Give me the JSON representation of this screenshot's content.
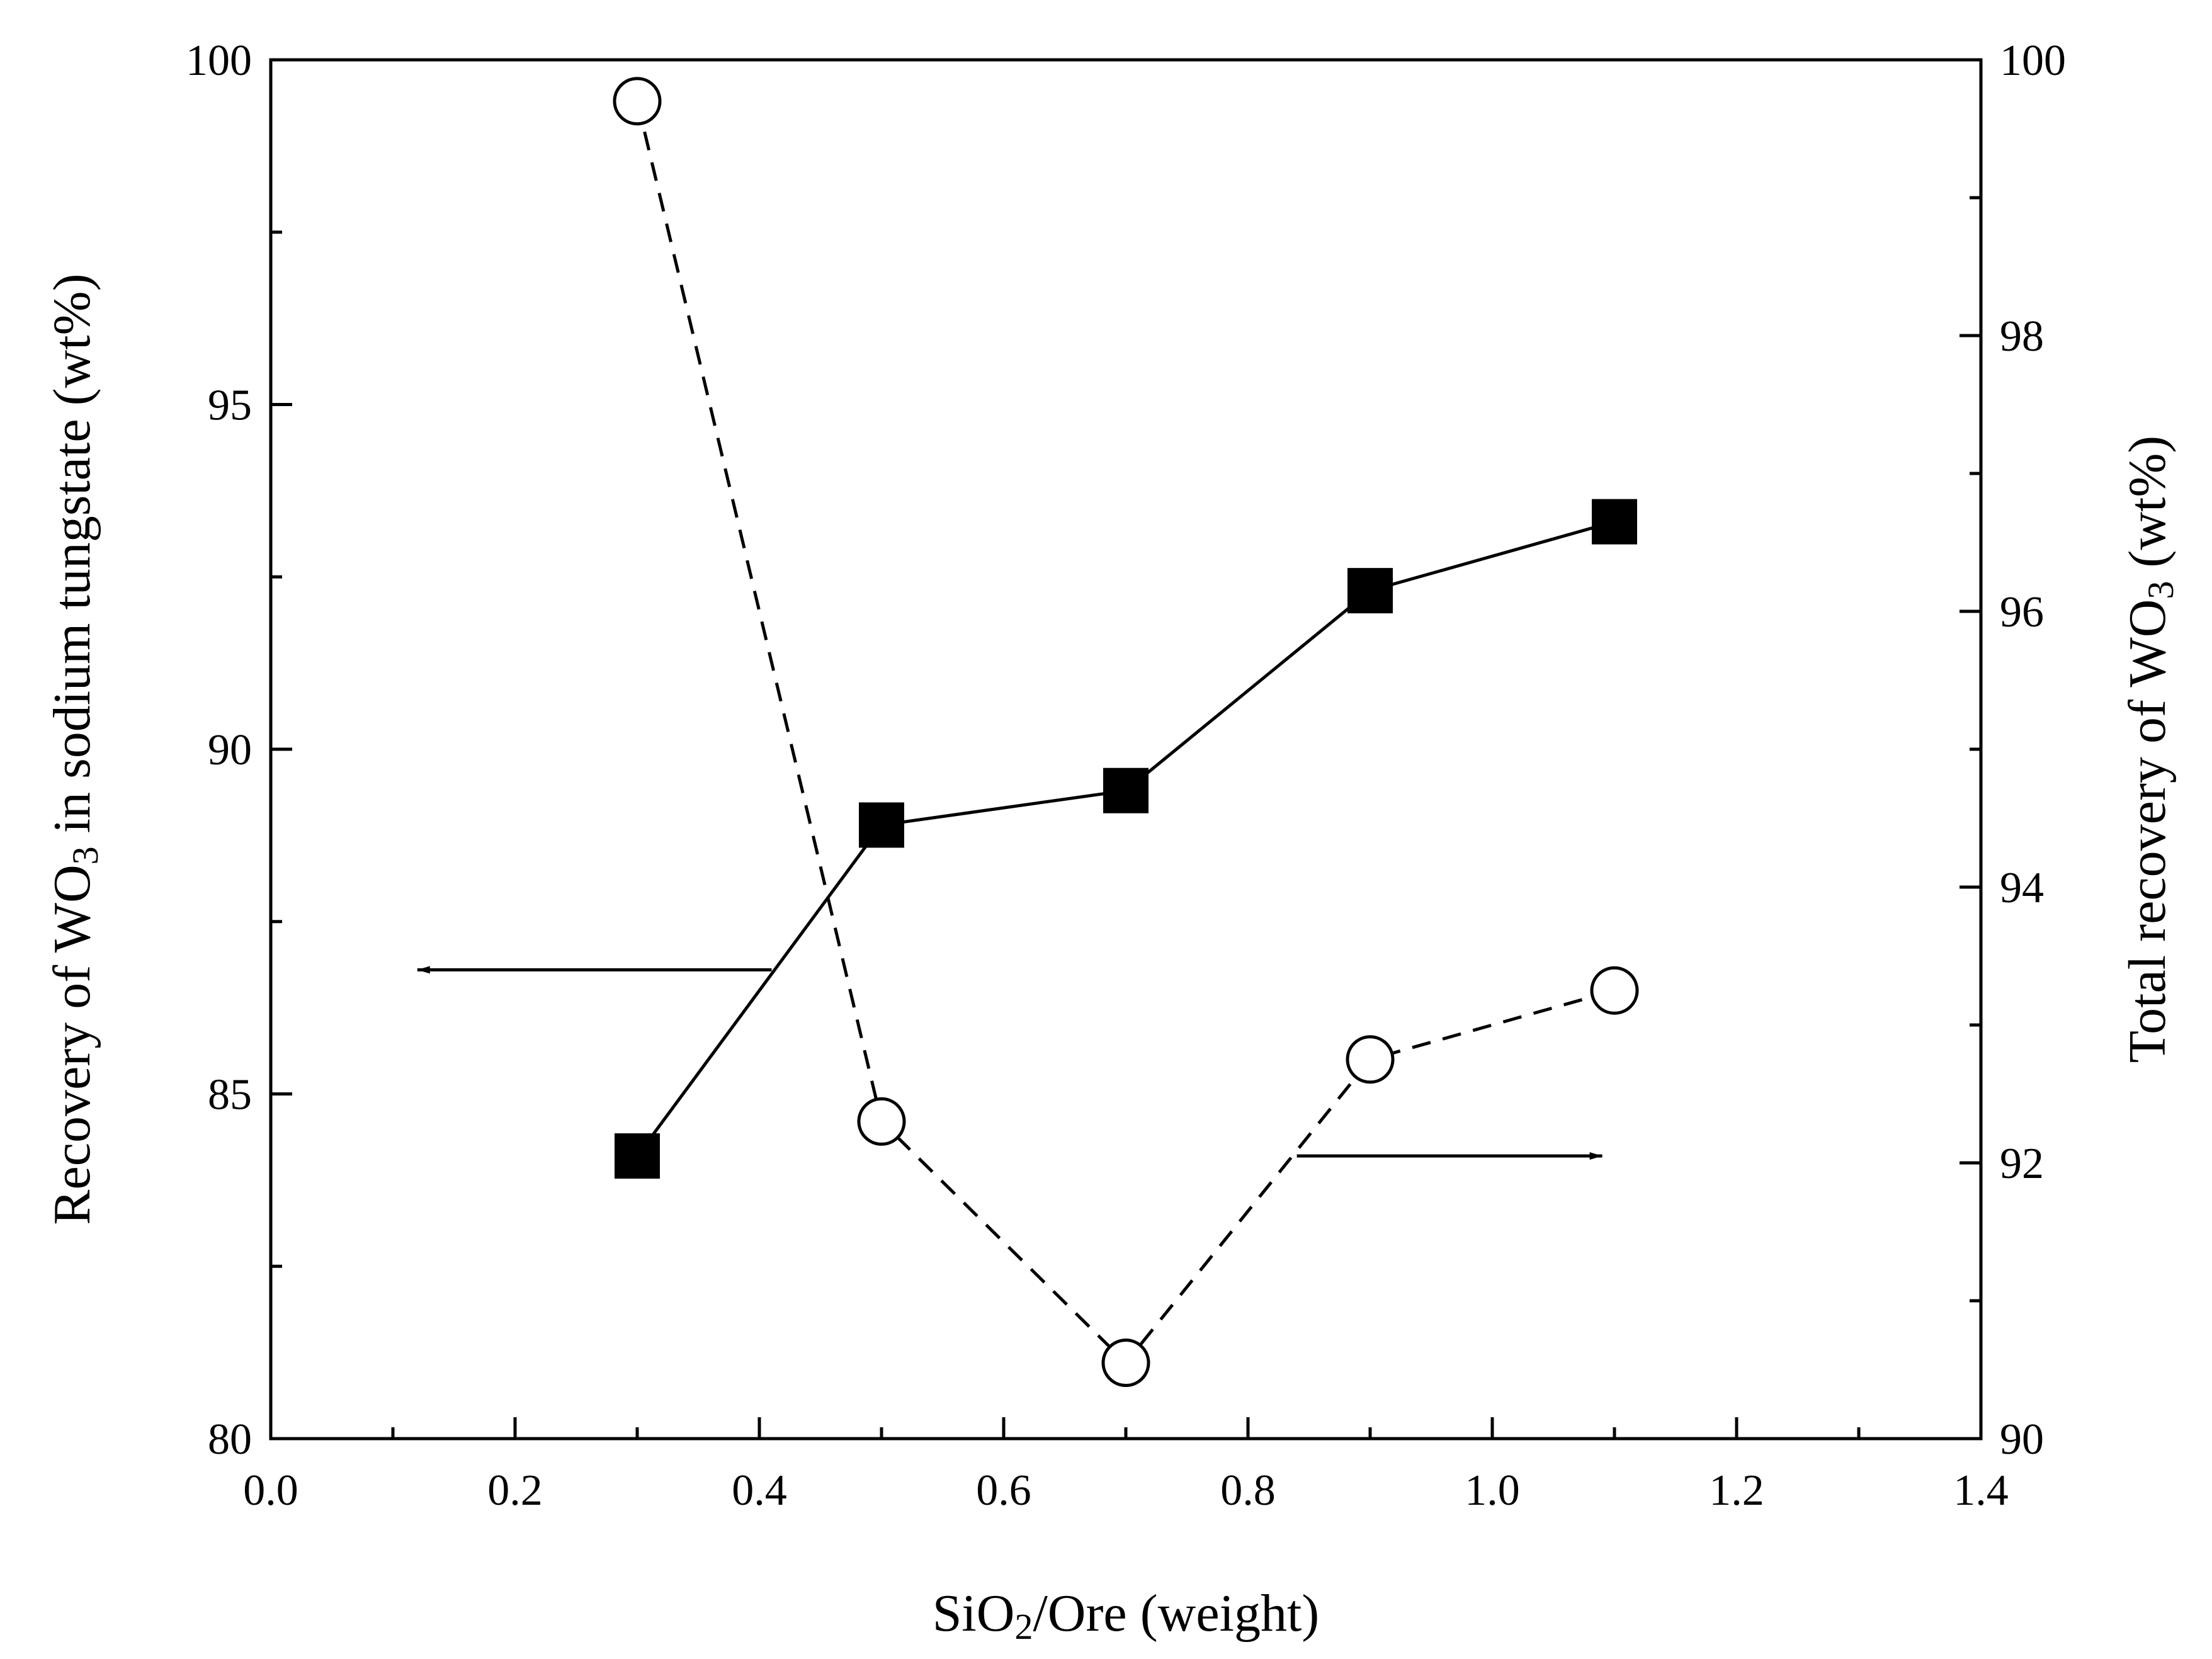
{
  "chart_data": {
    "type": "line",
    "title": "",
    "x": [
      0.3,
      0.5,
      0.7,
      0.9,
      1.1
    ],
    "xlim": [
      0.0,
      1.4
    ],
    "xticks": [
      "0.0",
      "0.2",
      "0.4",
      "0.6",
      "0.8",
      "1.0",
      "1.2",
      "1.4"
    ],
    "xlabel": {
      "base": "SiO",
      "sub": "2",
      "rest": "/Ore (weight)"
    },
    "y_left": {
      "lim": [
        80,
        100
      ],
      "ticks": [
        "80",
        "85",
        "90",
        "95",
        "100"
      ],
      "label": {
        "base": "Recovery of WO",
        "sub": "3",
        "rest": " in sodium tungstate (wt%)"
      }
    },
    "y_right": {
      "lim": [
        90,
        100
      ],
      "ticks": [
        "90",
        "92",
        "94",
        "96",
        "98",
        "100"
      ],
      "label": {
        "base": "Total recovery of WO",
        "sub": "3",
        "rest": " (wt%)"
      }
    },
    "series": [
      {
        "name": "Recovery of WO3 in sodium tungstate",
        "axis": "left",
        "marker": "filled-square",
        "line": "solid",
        "color": "#000000",
        "values": [
          84.1,
          88.9,
          89.4,
          92.3,
          93.3
        ]
      },
      {
        "name": "Total recovery of WO3",
        "axis": "right",
        "marker": "open-circle",
        "line": "dashed",
        "color": "#000000",
        "values": [
          99.7,
          92.3,
          90.55,
          92.75,
          93.25
        ]
      }
    ],
    "annotations": [
      {
        "type": "arrow",
        "points_to": "left-axis",
        "anchor": {
          "x": 0.41,
          "y_left": 86.8
        },
        "to_x": 0.12
      },
      {
        "type": "arrow",
        "points_to": "right-axis",
        "anchor": {
          "x": 0.84,
          "y_right": 92.05
        },
        "to_x": 1.09
      }
    ]
  }
}
